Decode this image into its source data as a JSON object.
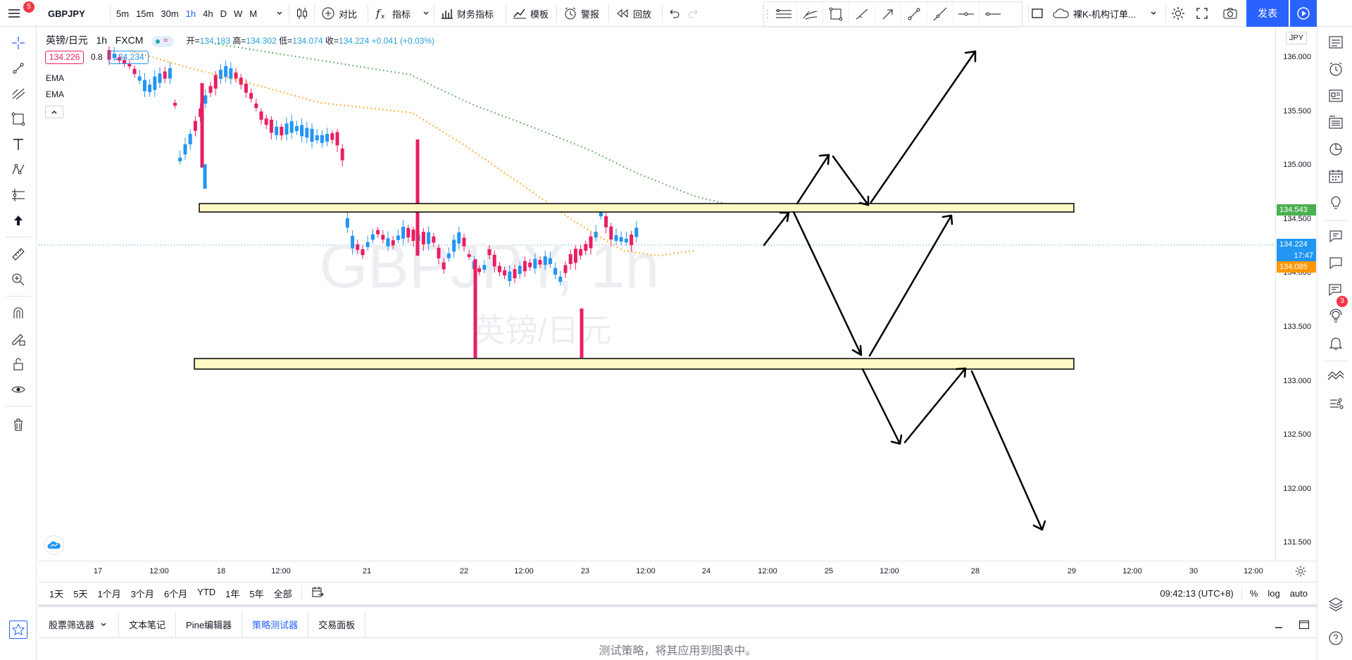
{
  "header": {
    "notification_count": "5",
    "symbol": "GBPJPY",
    "intervals": [
      "5m",
      "15m",
      "30m",
      "1h",
      "4h",
      "D",
      "W",
      "M"
    ],
    "active_interval": "1h",
    "compare_label": "对比",
    "indicators_label": "指标",
    "financials_label": "财务指标",
    "templates_label": "模板",
    "alerts_label": "警报",
    "replay_label": "回放",
    "layout_name": "裸K-机构订单...",
    "publish_label": "发表"
  },
  "legend": {
    "symbol_name": "英镑/日元",
    "interval": "1h",
    "exchange": "FXCM",
    "open_label": "开=",
    "open": "134.183",
    "high_label": "高=",
    "high": "134.302",
    "low_label": "低=",
    "low": "134.074",
    "close_label": "收=",
    "close": "134.224",
    "change": "+0.041 (+0.03%)",
    "bid": "134.226",
    "spread": "0.8",
    "ask": "134.234",
    "indicator1": "EMA",
    "indicator2": "EMA"
  },
  "watermark": {
    "ticker": "GBPJPY, 1h",
    "name": "英镑/日元"
  },
  "price_scale": {
    "currency": "JPY",
    "ticks": [
      "136.000",
      "135.500",
      "135.000",
      "134.500",
      "134.000",
      "133.500",
      "133.000",
      "132.500",
      "132.000",
      "131.500"
    ],
    "label_ema": "134.543",
    "label_last": "134.224",
    "label_countdown": "17:47",
    "label_ema2": "134.085"
  },
  "time_scale": {
    "ticks": [
      "17",
      "12:00",
      "18",
      "12:00",
      "21",
      "22",
      "12:00",
      "23",
      "12:00",
      "24",
      "12:00",
      "25",
      "12:00",
      "28",
      "29",
      "12:00",
      "30",
      "12:00"
    ]
  },
  "colors": {
    "up": "#2196f3",
    "down": "#e91e63",
    "ema_fast": "#ff9800",
    "ema_slow": "#43a047",
    "zone_fill": "#fff9c4",
    "accent": "#2962ff"
  },
  "range_bar": {
    "ranges": [
      "1天",
      "5天",
      "1个月",
      "3个月",
      "6个月",
      "YTD",
      "1年",
      "5年",
      "全部"
    ],
    "clock": "09:42:13 (UTC+8)",
    "percent": "%",
    "log": "log",
    "auto": "auto"
  },
  "bottom_panel": {
    "tabs": [
      "股票筛选器",
      "文本笔记",
      "Pine编辑器",
      "策略测试器",
      "交易面板"
    ],
    "active_tab": "策略测试器",
    "message": "测试策略，将其应用到图表中。"
  },
  "right_bar": {
    "badge_count": "3"
  },
  "icons": {
    "left": [
      "crosshair-icon",
      "trendline-icon",
      "fib-icon",
      "rectangle-icon",
      "text-icon",
      "pattern-icon",
      "prediction-icon",
      "arrow-up-icon",
      "ruler-icon",
      "zoom-icon",
      "magnet-icon",
      "lock-drawing-icon",
      "unlock-icon",
      "eye-icon",
      "trash-icon",
      "favorites-star-icon"
    ],
    "right": [
      "watchlist-icon",
      "alarm-clock-icon",
      "news-icon",
      "data-window-icon",
      "hotlist-icon",
      "calendar-icon",
      "ideas-icon",
      "chat-icon",
      "private-chat-icon",
      "streams-icon",
      "notifications-icon",
      "dom-icon",
      "order-panel-icon",
      "layers-icon",
      "help-icon"
    ]
  }
}
